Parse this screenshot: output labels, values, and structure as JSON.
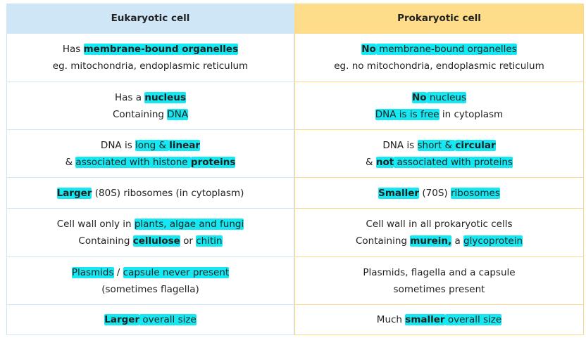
{
  "table": {
    "header": [
      "Eukaryotic cell",
      "Prokaryotic cell"
    ],
    "rows": [
      [
        [
          [
            {
              "text": "Has "
            },
            {
              "text": "membrane-bound organelles",
              "bold": true,
              "highlight": true
            }
          ],
          [
            {
              "text": "eg. mitochondria, endoplasmic reticulum"
            }
          ]
        ],
        [
          [
            {
              "text": "No",
              "bold": true,
              "highlight": true
            },
            {
              "text": " membrane-bound organelles",
              "highlight": true
            }
          ],
          [
            {
              "text": "eg. no mitochondria, endoplasmic reticulum"
            }
          ]
        ]
      ],
      [
        [
          [
            {
              "text": "Has a "
            },
            {
              "text": "nucleus",
              "bold": true,
              "highlight": true
            }
          ],
          [
            {
              "text": "Containing "
            },
            {
              "text": "DNA",
              "highlight": true
            }
          ]
        ],
        [
          [
            {
              "text": "No",
              "bold": true,
              "highlight": true
            },
            {
              "text": " nucleus",
              "highlight": true
            }
          ],
          [
            {
              "text": "DNA is is free",
              "highlight": true
            },
            {
              "text": " in cytoplasm"
            }
          ]
        ]
      ],
      [
        [
          [
            {
              "text": "DNA is "
            },
            {
              "text": "long & ",
              "highlight": true
            },
            {
              "text": "linear",
              "bold": true,
              "highlight": true
            }
          ],
          [
            {
              "text": "& "
            },
            {
              "text": "associated with histone ",
              "highlight": true
            },
            {
              "text": "proteins",
              "bold": true,
              "highlight": true
            }
          ]
        ],
        [
          [
            {
              "text": "DNA is "
            },
            {
              "text": "short & ",
              "highlight": true
            },
            {
              "text": "circular",
              "bold": true,
              "highlight": true
            }
          ],
          [
            {
              "text": "& "
            },
            {
              "text": "not",
              "bold": true,
              "highlight": true
            },
            {
              "text": " associated with proteins",
              "highlight": true
            }
          ]
        ]
      ],
      [
        [
          [
            {
              "text": "Larger",
              "bold": true,
              "highlight": true
            },
            {
              "text": " (80S) ribosomes (in cytoplasm)"
            }
          ]
        ],
        [
          [
            {
              "text": "Smaller",
              "bold": true,
              "highlight": true
            },
            {
              "text": " (70S) "
            },
            {
              "text": "ribosomes",
              "highlight": true
            }
          ]
        ]
      ],
      [
        [
          [
            {
              "text": "Cell wall only in "
            },
            {
              "text": "plants, algae and fungi",
              "highlight": true
            }
          ],
          [
            {
              "text": "Containing "
            },
            {
              "text": "cellulose",
              "bold": true,
              "highlight": true
            },
            {
              "text": " or "
            },
            {
              "text": "chitin",
              "highlight": true
            }
          ]
        ],
        [
          [
            {
              "text": "Cell wall in all prokaryotic cells"
            }
          ],
          [
            {
              "text": "Containing "
            },
            {
              "text": "murein,",
              "bold": true,
              "highlight": true
            },
            {
              "text": " a "
            },
            {
              "text": "glycoprotein",
              "highlight": true
            }
          ]
        ]
      ],
      [
        [
          [
            {
              "text": "Plasmids",
              "highlight": true
            },
            {
              "text": " / "
            },
            {
              "text": "capsule never present",
              "highlight": true
            }
          ],
          [
            {
              "text": "(sometimes flagella)"
            }
          ]
        ],
        [
          [
            {
              "text": "Plasmids, flagella and a capsule"
            }
          ],
          [
            {
              "text": "sometimes present"
            }
          ]
        ]
      ],
      [
        [
          [
            {
              "text": "Larger",
              "bold": true,
              "highlight": true
            },
            {
              "text": " overall size",
              "highlight": true
            }
          ]
        ],
        [
          [
            {
              "text": "Much "
            },
            {
              "text": "smaller",
              "bold": true,
              "highlight": true
            },
            {
              "text": " overall size",
              "highlight": true
            }
          ]
        ]
      ]
    ]
  }
}
